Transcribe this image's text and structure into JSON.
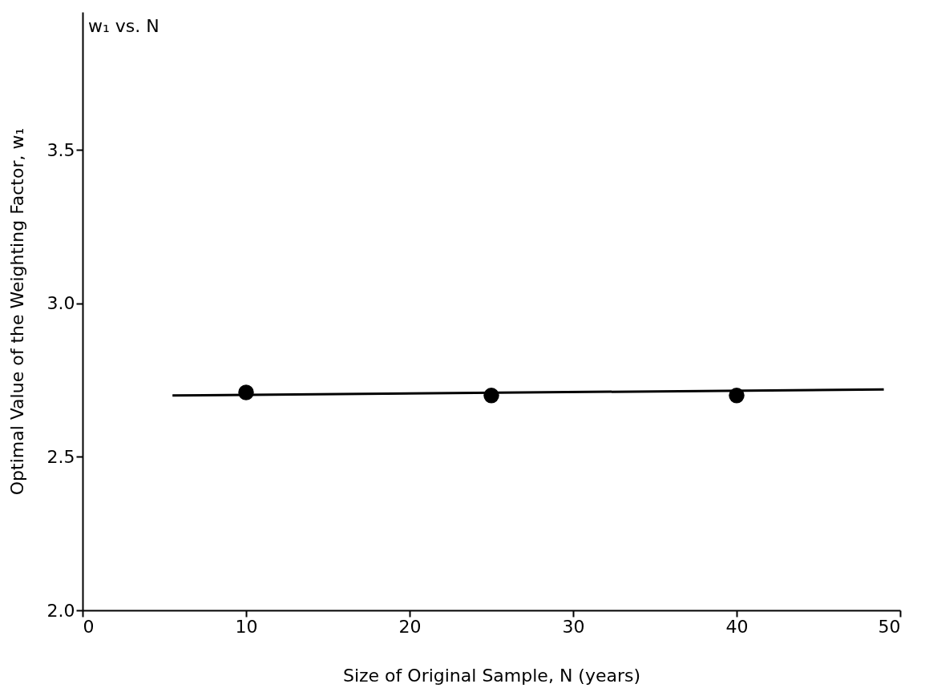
{
  "chart_data": {
    "type": "scatter",
    "title": "w₁  vs. N",
    "xlabel": "Size of Original Sample, N (years)",
    "ylabel": "Optimal Value of the Weighting Factor, w₁",
    "xlim": [
      0,
      50
    ],
    "xticks": [
      0,
      10,
      20,
      30,
      40,
      50
    ],
    "ylim": [
      2.0,
      3.95
    ],
    "yticks": [
      {
        "value": 2.0,
        "label": "2.0"
      },
      {
        "value": 2.5,
        "label": "2.5"
      },
      {
        "value": 3.0,
        "label": "3.0"
      },
      {
        "value": 3.5,
        "label": "3.5"
      }
    ],
    "grid": false,
    "series": [
      {
        "type": "scatter",
        "color": "#000000",
        "x": [
          10,
          25,
          40
        ],
        "values": [
          2.71,
          2.7,
          2.7
        ],
        "marker": "circle"
      },
      {
        "type": "line",
        "color": "#000000",
        "x": [
          5.5,
          49
        ],
        "values": [
          2.7,
          2.72
        ],
        "line_style": "solid"
      }
    ]
  }
}
